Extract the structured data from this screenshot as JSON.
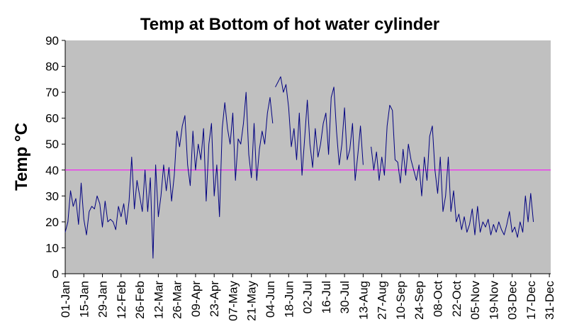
{
  "chart_data": {
    "type": "line",
    "title": "Temp at Bottom of hot water cylinder",
    "xlabel": "",
    "ylabel": "Temp °C",
    "x_tick_labels": [
      "01-Jan",
      "15-Jan",
      "29-Jan",
      "12-Feb",
      "26-Feb",
      "12-Mar",
      "26-Mar",
      "09-Apr",
      "23-Apr",
      "07-May",
      "21-May",
      "04-Jun",
      "18-Jun",
      "02-Jul",
      "16-Jul",
      "30-Jul",
      "13-Aug",
      "27-Aug",
      "10-Sep",
      "24-Sep",
      "08-Oct",
      "22-Oct",
      "05-Nov",
      "19-Nov",
      "03-Dec",
      "17-Dec",
      "31-Dec"
    ],
    "x_tick_interval_days": 14,
    "xlim_days": [
      0,
      365
    ],
    "ylim": [
      0,
      90
    ],
    "y_ticks": [
      0,
      10,
      20,
      30,
      40,
      50,
      60,
      70,
      80,
      90
    ],
    "plot_background": "#c0c0c0",
    "grid": false,
    "legend": "none",
    "reference_line": {
      "value": 40,
      "color": "#ff00ff"
    },
    "series": [
      {
        "color": "#000080",
        "gaps_after_day": [
          156,
          224
        ],
        "points": [
          [
            0,
            16
          ],
          [
            2,
            20
          ],
          [
            4,
            32
          ],
          [
            6,
            26
          ],
          [
            8,
            29
          ],
          [
            10,
            19
          ],
          [
            12,
            35
          ],
          [
            14,
            21
          ],
          [
            16,
            15
          ],
          [
            18,
            24
          ],
          [
            20,
            26
          ],
          [
            22,
            25
          ],
          [
            24,
            30
          ],
          [
            26,
            27
          ],
          [
            28,
            18
          ],
          [
            30,
            28
          ],
          [
            32,
            20
          ],
          [
            34,
            21
          ],
          [
            36,
            20
          ],
          [
            38,
            17
          ],
          [
            40,
            26
          ],
          [
            42,
            22
          ],
          [
            44,
            27
          ],
          [
            46,
            19
          ],
          [
            48,
            28
          ],
          [
            50,
            45
          ],
          [
            52,
            25
          ],
          [
            54,
            36
          ],
          [
            56,
            30
          ],
          [
            58,
            24
          ],
          [
            60,
            40
          ],
          [
            62,
            24
          ],
          [
            64,
            37
          ],
          [
            66,
            6
          ],
          [
            68,
            42
          ],
          [
            70,
            22
          ],
          [
            72,
            30
          ],
          [
            74,
            42
          ],
          [
            76,
            32
          ],
          [
            78,
            41
          ],
          [
            80,
            28
          ],
          [
            82,
            38
          ],
          [
            84,
            55
          ],
          [
            86,
            49
          ],
          [
            88,
            57
          ],
          [
            90,
            61
          ],
          [
            92,
            42
          ],
          [
            94,
            34
          ],
          [
            96,
            55
          ],
          [
            98,
            40
          ],
          [
            100,
            50
          ],
          [
            102,
            44
          ],
          [
            104,
            56
          ],
          [
            106,
            28
          ],
          [
            108,
            50
          ],
          [
            110,
            58
          ],
          [
            112,
            30
          ],
          [
            114,
            42
          ],
          [
            116,
            22
          ],
          [
            118,
            56
          ],
          [
            120,
            66
          ],
          [
            122,
            56
          ],
          [
            124,
            50
          ],
          [
            126,
            62
          ],
          [
            128,
            36
          ],
          [
            130,
            52
          ],
          [
            132,
            50
          ],
          [
            134,
            58
          ],
          [
            136,
            70
          ],
          [
            138,
            46
          ],
          [
            140,
            37
          ],
          [
            142,
            58
          ],
          [
            144,
            36
          ],
          [
            146,
            48
          ],
          [
            148,
            55
          ],
          [
            150,
            50
          ],
          [
            152,
            62
          ],
          [
            154,
            68
          ],
          [
            156,
            58
          ],
          [
            158,
            72
          ],
          [
            160,
            74
          ],
          [
            162,
            76
          ],
          [
            164,
            70
          ],
          [
            166,
            73
          ],
          [
            168,
            64
          ],
          [
            170,
            49
          ],
          [
            172,
            56
          ],
          [
            174,
            44
          ],
          [
            176,
            62
          ],
          [
            178,
            38
          ],
          [
            180,
            52
          ],
          [
            182,
            67
          ],
          [
            184,
            50
          ],
          [
            186,
            41
          ],
          [
            188,
            56
          ],
          [
            190,
            45
          ],
          [
            192,
            50
          ],
          [
            194,
            58
          ],
          [
            196,
            62
          ],
          [
            198,
            46
          ],
          [
            200,
            68
          ],
          [
            202,
            72
          ],
          [
            204,
            55
          ],
          [
            206,
            42
          ],
          [
            208,
            50
          ],
          [
            210,
            64
          ],
          [
            212,
            44
          ],
          [
            214,
            48
          ],
          [
            216,
            58
          ],
          [
            218,
            36
          ],
          [
            220,
            46
          ],
          [
            222,
            57
          ],
          [
            224,
            42
          ],
          [
            230,
            49
          ],
          [
            232,
            40
          ],
          [
            234,
            47
          ],
          [
            236,
            36
          ],
          [
            238,
            45
          ],
          [
            240,
            38
          ],
          [
            242,
            57
          ],
          [
            244,
            65
          ],
          [
            246,
            63
          ],
          [
            248,
            44
          ],
          [
            250,
            43
          ],
          [
            252,
            35
          ],
          [
            254,
            48
          ],
          [
            256,
            38
          ],
          [
            258,
            50
          ],
          [
            260,
            44
          ],
          [
            262,
            40
          ],
          [
            264,
            36
          ],
          [
            266,
            42
          ],
          [
            268,
            30
          ],
          [
            270,
            45
          ],
          [
            272,
            36
          ],
          [
            274,
            53
          ],
          [
            276,
            57
          ],
          [
            278,
            40
          ],
          [
            280,
            31
          ],
          [
            282,
            45
          ],
          [
            284,
            24
          ],
          [
            286,
            30
          ],
          [
            288,
            45
          ],
          [
            290,
            24
          ],
          [
            292,
            32
          ],
          [
            294,
            20
          ],
          [
            296,
            23
          ],
          [
            298,
            17
          ],
          [
            300,
            22
          ],
          [
            302,
            16
          ],
          [
            304,
            19
          ],
          [
            306,
            25
          ],
          [
            308,
            15
          ],
          [
            310,
            26
          ],
          [
            312,
            16
          ],
          [
            314,
            20
          ],
          [
            316,
            18
          ],
          [
            318,
            21
          ],
          [
            320,
            15
          ],
          [
            322,
            19
          ],
          [
            324,
            16
          ],
          [
            326,
            20
          ],
          [
            328,
            17
          ],
          [
            330,
            15
          ],
          [
            332,
            19
          ],
          [
            334,
            24
          ],
          [
            336,
            16
          ],
          [
            338,
            18
          ],
          [
            340,
            14
          ],
          [
            342,
            20
          ],
          [
            344,
            16
          ],
          [
            346,
            30
          ],
          [
            348,
            20
          ],
          [
            350,
            31
          ],
          [
            352,
            20
          ]
        ]
      }
    ]
  }
}
